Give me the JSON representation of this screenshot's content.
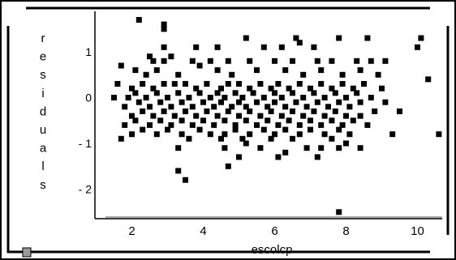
{
  "chart_data": {
    "type": "scatter",
    "xlabel": "escolcp",
    "ylabel": "residuals",
    "ylabel_letters": [
      "r",
      "e",
      "s",
      "i",
      "d",
      "u",
      "a",
      "l",
      "s"
    ],
    "x_ticks": [
      "2",
      "4",
      "6",
      "8",
      "10"
    ],
    "x_tick_values": [
      2,
      4,
      6,
      8,
      10
    ],
    "y_ticks": [
      "1",
      "0",
      "- 1",
      "- 2"
    ],
    "y_tick_values": [
      1,
      0,
      -1,
      -2
    ],
    "xlim": [
      1.2,
      10.8
    ],
    "ylim": [
      -2.6,
      1.8
    ],
    "marker_color": "#000000",
    "points": [
      [
        2.2,
        1.7
      ],
      [
        2.9,
        1.6
      ],
      [
        2.9,
        1.5
      ],
      [
        5.2,
        1.3
      ],
      [
        6.6,
        1.3
      ],
      [
        6.7,
        1.2
      ],
      [
        7.8,
        1.3
      ],
      [
        8.6,
        1.3
      ],
      [
        10.1,
        1.3
      ],
      [
        2.9,
        1.1
      ],
      [
        3.8,
        1.1
      ],
      [
        4.4,
        1.1
      ],
      [
        5.7,
        1.1
      ],
      [
        6.2,
        1.1
      ],
      [
        7.1,
        1.1
      ],
      [
        10.0,
        1.1
      ],
      [
        2.5,
        0.9
      ],
      [
        2.6,
        0.8
      ],
      [
        2.9,
        0.8
      ],
      [
        3.1,
        0.9
      ],
      [
        3.7,
        0.8
      ],
      [
        4.2,
        0.8
      ],
      [
        4.7,
        0.8
      ],
      [
        5.3,
        0.8
      ],
      [
        6.0,
        0.8
      ],
      [
        6.5,
        0.8
      ],
      [
        7.2,
        0.8
      ],
      [
        7.6,
        0.8
      ],
      [
        8.3,
        0.8
      ],
      [
        8.7,
        0.8
      ],
      [
        9.1,
        0.8
      ],
      [
        1.7,
        0.7
      ],
      [
        2.1,
        0.6
      ],
      [
        2.4,
        0.5
      ],
      [
        2.7,
        0.6
      ],
      [
        3.3,
        0.5
      ],
      [
        3.9,
        0.7
      ],
      [
        4.4,
        0.6
      ],
      [
        4.8,
        0.5
      ],
      [
        5.5,
        0.6
      ],
      [
        6.3,
        0.6
      ],
      [
        6.8,
        0.5
      ],
      [
        7.3,
        0.6
      ],
      [
        7.9,
        0.5
      ],
      [
        8.4,
        0.6
      ],
      [
        8.9,
        0.5
      ],
      [
        1.6,
        0.3
      ],
      [
        2.0,
        0.2
      ],
      [
        2.3,
        0.3
      ],
      [
        2.6,
        0.2
      ],
      [
        2.9,
        0.3
      ],
      [
        3.2,
        0.3
      ],
      [
        3.5,
        0.3
      ],
      [
        3.8,
        0.2
      ],
      [
        4.1,
        0.3
      ],
      [
        4.5,
        0.2
      ],
      [
        4.7,
        0.3
      ],
      [
        5.0,
        0.3
      ],
      [
        5.3,
        0.2
      ],
      [
        5.6,
        0.3
      ],
      [
        5.9,
        0.2
      ],
      [
        6.1,
        0.3
      ],
      [
        6.4,
        0.2
      ],
      [
        6.7,
        0.3
      ],
      [
        7.0,
        0.2
      ],
      [
        7.3,
        0.3
      ],
      [
        7.6,
        0.2
      ],
      [
        7.9,
        0.3
      ],
      [
        8.2,
        0.2
      ],
      [
        8.5,
        0.3
      ],
      [
        9.0,
        0.2
      ],
      [
        10.3,
        0.4
      ],
      [
        1.9,
        0.0
      ],
      [
        2.1,
        0.1
      ],
      [
        2.4,
        0.0
      ],
      [
        2.7,
        0.1
      ],
      [
        3.0,
        0.0
      ],
      [
        3.3,
        0.1
      ],
      [
        3.6,
        0.0
      ],
      [
        3.9,
        0.1
      ],
      [
        4.2,
        0.0
      ],
      [
        4.4,
        0.1
      ],
      [
        4.6,
        0.0
      ],
      [
        4.9,
        0.1
      ],
      [
        5.1,
        0.0
      ],
      [
        5.4,
        0.1
      ],
      [
        5.7,
        0.0
      ],
      [
        6.0,
        0.1
      ],
      [
        6.2,
        0.0
      ],
      [
        6.5,
        0.1
      ],
      [
        6.8,
        0.0
      ],
      [
        7.1,
        0.1
      ],
      [
        7.4,
        0.0
      ],
      [
        7.7,
        0.1
      ],
      [
        8.0,
        0.0
      ],
      [
        8.3,
        0.1
      ],
      [
        8.7,
        0.0
      ],
      [
        9.1,
        -0.1
      ],
      [
        1.5,
        0.0
      ],
      [
        1.8,
        -0.2
      ],
      [
        2.2,
        -0.1
      ],
      [
        2.5,
        -0.2
      ],
      [
        2.8,
        -0.1
      ],
      [
        3.1,
        -0.2
      ],
      [
        3.4,
        -0.1
      ],
      [
        3.7,
        -0.2
      ],
      [
        4.0,
        -0.1
      ],
      [
        4.3,
        -0.2
      ],
      [
        4.5,
        -0.1
      ],
      [
        4.8,
        -0.2
      ],
      [
        5.0,
        -0.1
      ],
      [
        5.2,
        -0.2
      ],
      [
        5.5,
        -0.1
      ],
      [
        5.8,
        -0.2
      ],
      [
        6.0,
        -0.1
      ],
      [
        6.3,
        -0.2
      ],
      [
        6.6,
        -0.1
      ],
      [
        6.9,
        -0.2
      ],
      [
        7.2,
        -0.1
      ],
      [
        7.5,
        -0.2
      ],
      [
        7.8,
        -0.1
      ],
      [
        8.1,
        -0.2
      ],
      [
        8.4,
        -0.1
      ],
      [
        8.8,
        -0.3
      ],
      [
        9.5,
        -0.3
      ],
      [
        2.0,
        -0.4
      ],
      [
        2.3,
        -0.3
      ],
      [
        2.6,
        -0.4
      ],
      [
        2.9,
        -0.3
      ],
      [
        3.2,
        -0.4
      ],
      [
        3.5,
        -0.3
      ],
      [
        3.8,
        -0.4
      ],
      [
        4.1,
        -0.3
      ],
      [
        4.4,
        -0.4
      ],
      [
        4.7,
        -0.3
      ],
      [
        5.0,
        -0.4
      ],
      [
        5.3,
        -0.3
      ],
      [
        5.6,
        -0.4
      ],
      [
        5.9,
        -0.3
      ],
      [
        6.2,
        -0.4
      ],
      [
        6.5,
        -0.3
      ],
      [
        6.8,
        -0.4
      ],
      [
        7.1,
        -0.3
      ],
      [
        7.4,
        -0.4
      ],
      [
        7.7,
        -0.3
      ],
      [
        8.0,
        -0.4
      ],
      [
        8.4,
        -0.4
      ],
      [
        1.8,
        -0.6
      ],
      [
        2.1,
        -0.5
      ],
      [
        2.5,
        -0.6
      ],
      [
        2.8,
        -0.5
      ],
      [
        3.1,
        -0.6
      ],
      [
        3.4,
        -0.5
      ],
      [
        3.7,
        -0.6
      ],
      [
        4.0,
        -0.5
      ],
      [
        4.3,
        -0.6
      ],
      [
        4.6,
        -0.5
      ],
      [
        4.9,
        -0.6
      ],
      [
        5.2,
        -0.5
      ],
      [
        5.5,
        -0.6
      ],
      [
        5.8,
        -0.5
      ],
      [
        6.1,
        -0.6
      ],
      [
        6.4,
        -0.5
      ],
      [
        6.7,
        -0.6
      ],
      [
        7.0,
        -0.5
      ],
      [
        7.3,
        -0.6
      ],
      [
        7.6,
        -0.5
      ],
      [
        7.9,
        -0.6
      ],
      [
        8.2,
        -0.5
      ],
      [
        8.6,
        -0.6
      ],
      [
        2.0,
        -0.8
      ],
      [
        2.3,
        -0.7
      ],
      [
        2.7,
        -0.8
      ],
      [
        3.0,
        -0.7
      ],
      [
        3.4,
        -0.8
      ],
      [
        3.9,
        -0.7
      ],
      [
        4.2,
        -0.8
      ],
      [
        4.6,
        -0.8
      ],
      [
        4.9,
        -0.7
      ],
      [
        5.3,
        -0.8
      ],
      [
        5.7,
        -0.7
      ],
      [
        6.0,
        -0.8
      ],
      [
        6.3,
        -0.7
      ],
      [
        6.7,
        -0.8
      ],
      [
        7.0,
        -0.7
      ],
      [
        7.4,
        -0.8
      ],
      [
        7.8,
        -0.7
      ],
      [
        8.1,
        -0.8
      ],
      [
        9.3,
        -0.8
      ],
      [
        10.6,
        -0.8
      ],
      [
        1.7,
        -0.9
      ],
      [
        3.6,
        -0.9
      ],
      [
        4.5,
        -0.9
      ],
      [
        5.1,
        -0.9
      ],
      [
        5.9,
        -0.9
      ],
      [
        6.5,
        -0.9
      ],
      [
        7.6,
        -0.9
      ],
      [
        8.0,
        -1.0
      ],
      [
        3.3,
        -1.1
      ],
      [
        4.6,
        -1.1
      ],
      [
        5.2,
        -1.0
      ],
      [
        5.6,
        -1.1
      ],
      [
        6.3,
        -1.2
      ],
      [
        6.9,
        -1.1
      ],
      [
        7.3,
        -1.1
      ],
      [
        7.8,
        -1.1
      ],
      [
        8.4,
        -1.1
      ],
      [
        5.0,
        -1.3
      ],
      [
        6.1,
        -1.3
      ],
      [
        4.7,
        -1.5
      ],
      [
        7.2,
        -1.3
      ],
      [
        3.3,
        -1.6
      ],
      [
        3.5,
        -1.8
      ],
      [
        7.8,
        -2.5
      ]
    ]
  }
}
